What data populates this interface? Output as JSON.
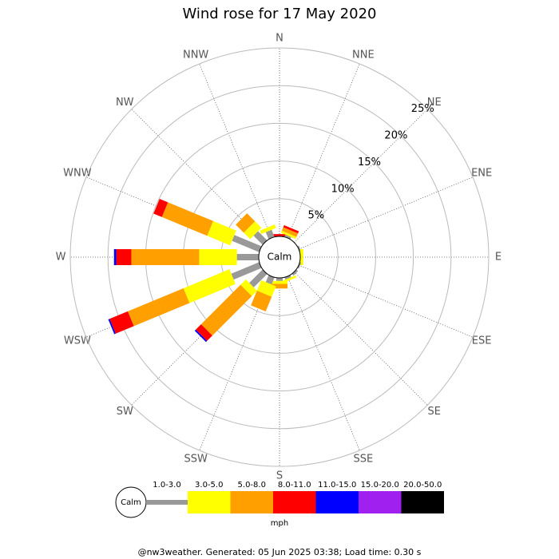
{
  "chart_data": {
    "type": "windrose",
    "title": "Wind rose for 17 May 2020",
    "directions": [
      "N",
      "NNE",
      "NE",
      "ENE",
      "E",
      "ESE",
      "SE",
      "SSE",
      "S",
      "SSW",
      "SW",
      "WSW",
      "W",
      "WNW",
      "NW",
      "NNW"
    ],
    "series": [
      {
        "name": "1.0-3.0",
        "color": "#999999",
        "values": [
          0,
          0.3,
          0,
          0.2,
          0,
          0.2,
          0.3,
          0.3,
          0.4,
          1.0,
          2.5,
          4.0,
          2.9,
          3.9,
          1.7,
          1.0
        ]
      },
      {
        "name": "3.0-5.0",
        "color": "#ffff00",
        "values": [
          0,
          0.3,
          0,
          0,
          0.4,
          0,
          0,
          0.3,
          0.4,
          1.5,
          1.0,
          6.6,
          5.0,
          3.3,
          1.2,
          0.5
        ]
      },
      {
        "name": "5.0-8.0",
        "color": "#ffa000",
        "values": [
          0,
          0.5,
          0,
          0,
          0,
          0,
          0,
          0,
          0.6,
          2.1,
          7.4,
          8.0,
          9.0,
          6.5,
          1.5,
          0
        ]
      },
      {
        "name": "8.0-11.0",
        "color": "#ff0000",
        "values": [
          0.3,
          0.3,
          0,
          0,
          0,
          0,
          0,
          0,
          0,
          0,
          1.0,
          2.6,
          2.0,
          1.2,
          0,
          0
        ]
      },
      {
        "name": "11.0-15.0",
        "color": "#0000ff",
        "values": [
          0,
          0,
          0,
          0,
          0,
          0,
          0,
          0,
          0,
          0,
          0.2,
          0.2,
          0.3,
          0,
          0,
          0
        ]
      },
      {
        "name": "15.0-20.0",
        "color": "#a020f0",
        "values": [
          0,
          0,
          0,
          0,
          0,
          0,
          0,
          0,
          0,
          0,
          0,
          0,
          0,
          0,
          0,
          0
        ]
      },
      {
        "name": "20.0-50.0",
        "color": "#000000",
        "values": [
          0,
          0,
          0,
          0,
          0,
          0,
          0,
          0,
          0,
          0,
          0,
          0,
          0,
          0,
          0,
          0
        ]
      }
    ],
    "rlim": [
      0,
      25
    ],
    "rticks": [
      {
        "value": 5,
        "label": "5%"
      },
      {
        "value": 10,
        "label": "10%"
      },
      {
        "value": 15,
        "label": "15%"
      },
      {
        "value": 20,
        "label": "20%"
      },
      {
        "value": 25,
        "label": "25%"
      }
    ],
    "calm_label": "Calm",
    "unit": "mph",
    "footer": "@nw3weather. Generated: 05 Jun 2025 03:38; Load time: 0.30 s"
  }
}
